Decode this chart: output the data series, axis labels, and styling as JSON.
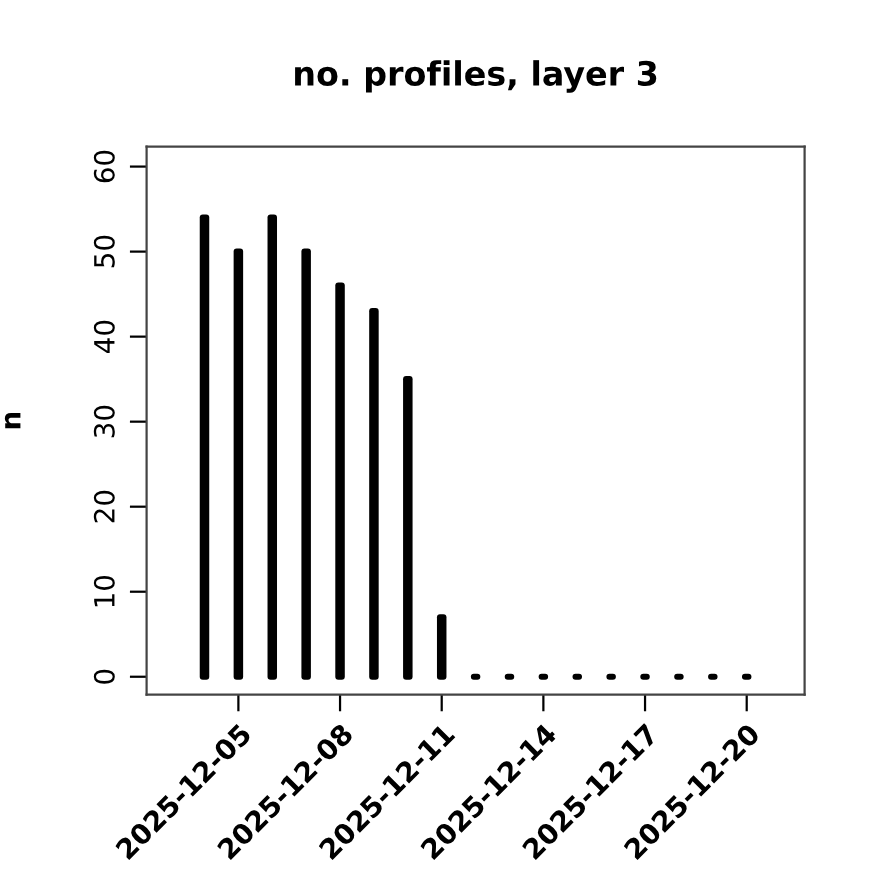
{
  "chart_data": {
    "type": "bar",
    "title": "no. profiles, layer 3",
    "ylabel": "n",
    "x": [
      "2025-12-04",
      "2025-12-05",
      "2025-12-06",
      "2025-12-07",
      "2025-12-08",
      "2025-12-09",
      "2025-12-10",
      "2025-12-11",
      "2025-12-12",
      "2025-12-13",
      "2025-12-14",
      "2025-12-15",
      "2025-12-16",
      "2025-12-17",
      "2025-12-18",
      "2025-12-19",
      "2025-12-20"
    ],
    "values": [
      54,
      50,
      54,
      50,
      46,
      43,
      35,
      7,
      0,
      0,
      0,
      0,
      0,
      0,
      0,
      0,
      0
    ],
    "color": "#000000",
    "xlim": [
      "2025-12-02T07:00",
      "2025-12-21T17:00"
    ],
    "xticks": [
      "2025-12-05",
      "2025-12-08",
      "2025-12-11",
      "2025-12-14",
      "2025-12-17",
      "2025-12-20"
    ],
    "ylim": [
      -2.1,
      62.35
    ],
    "yticks": [
      0,
      10,
      20,
      30,
      40,
      50,
      60
    ],
    "grid": false
  }
}
